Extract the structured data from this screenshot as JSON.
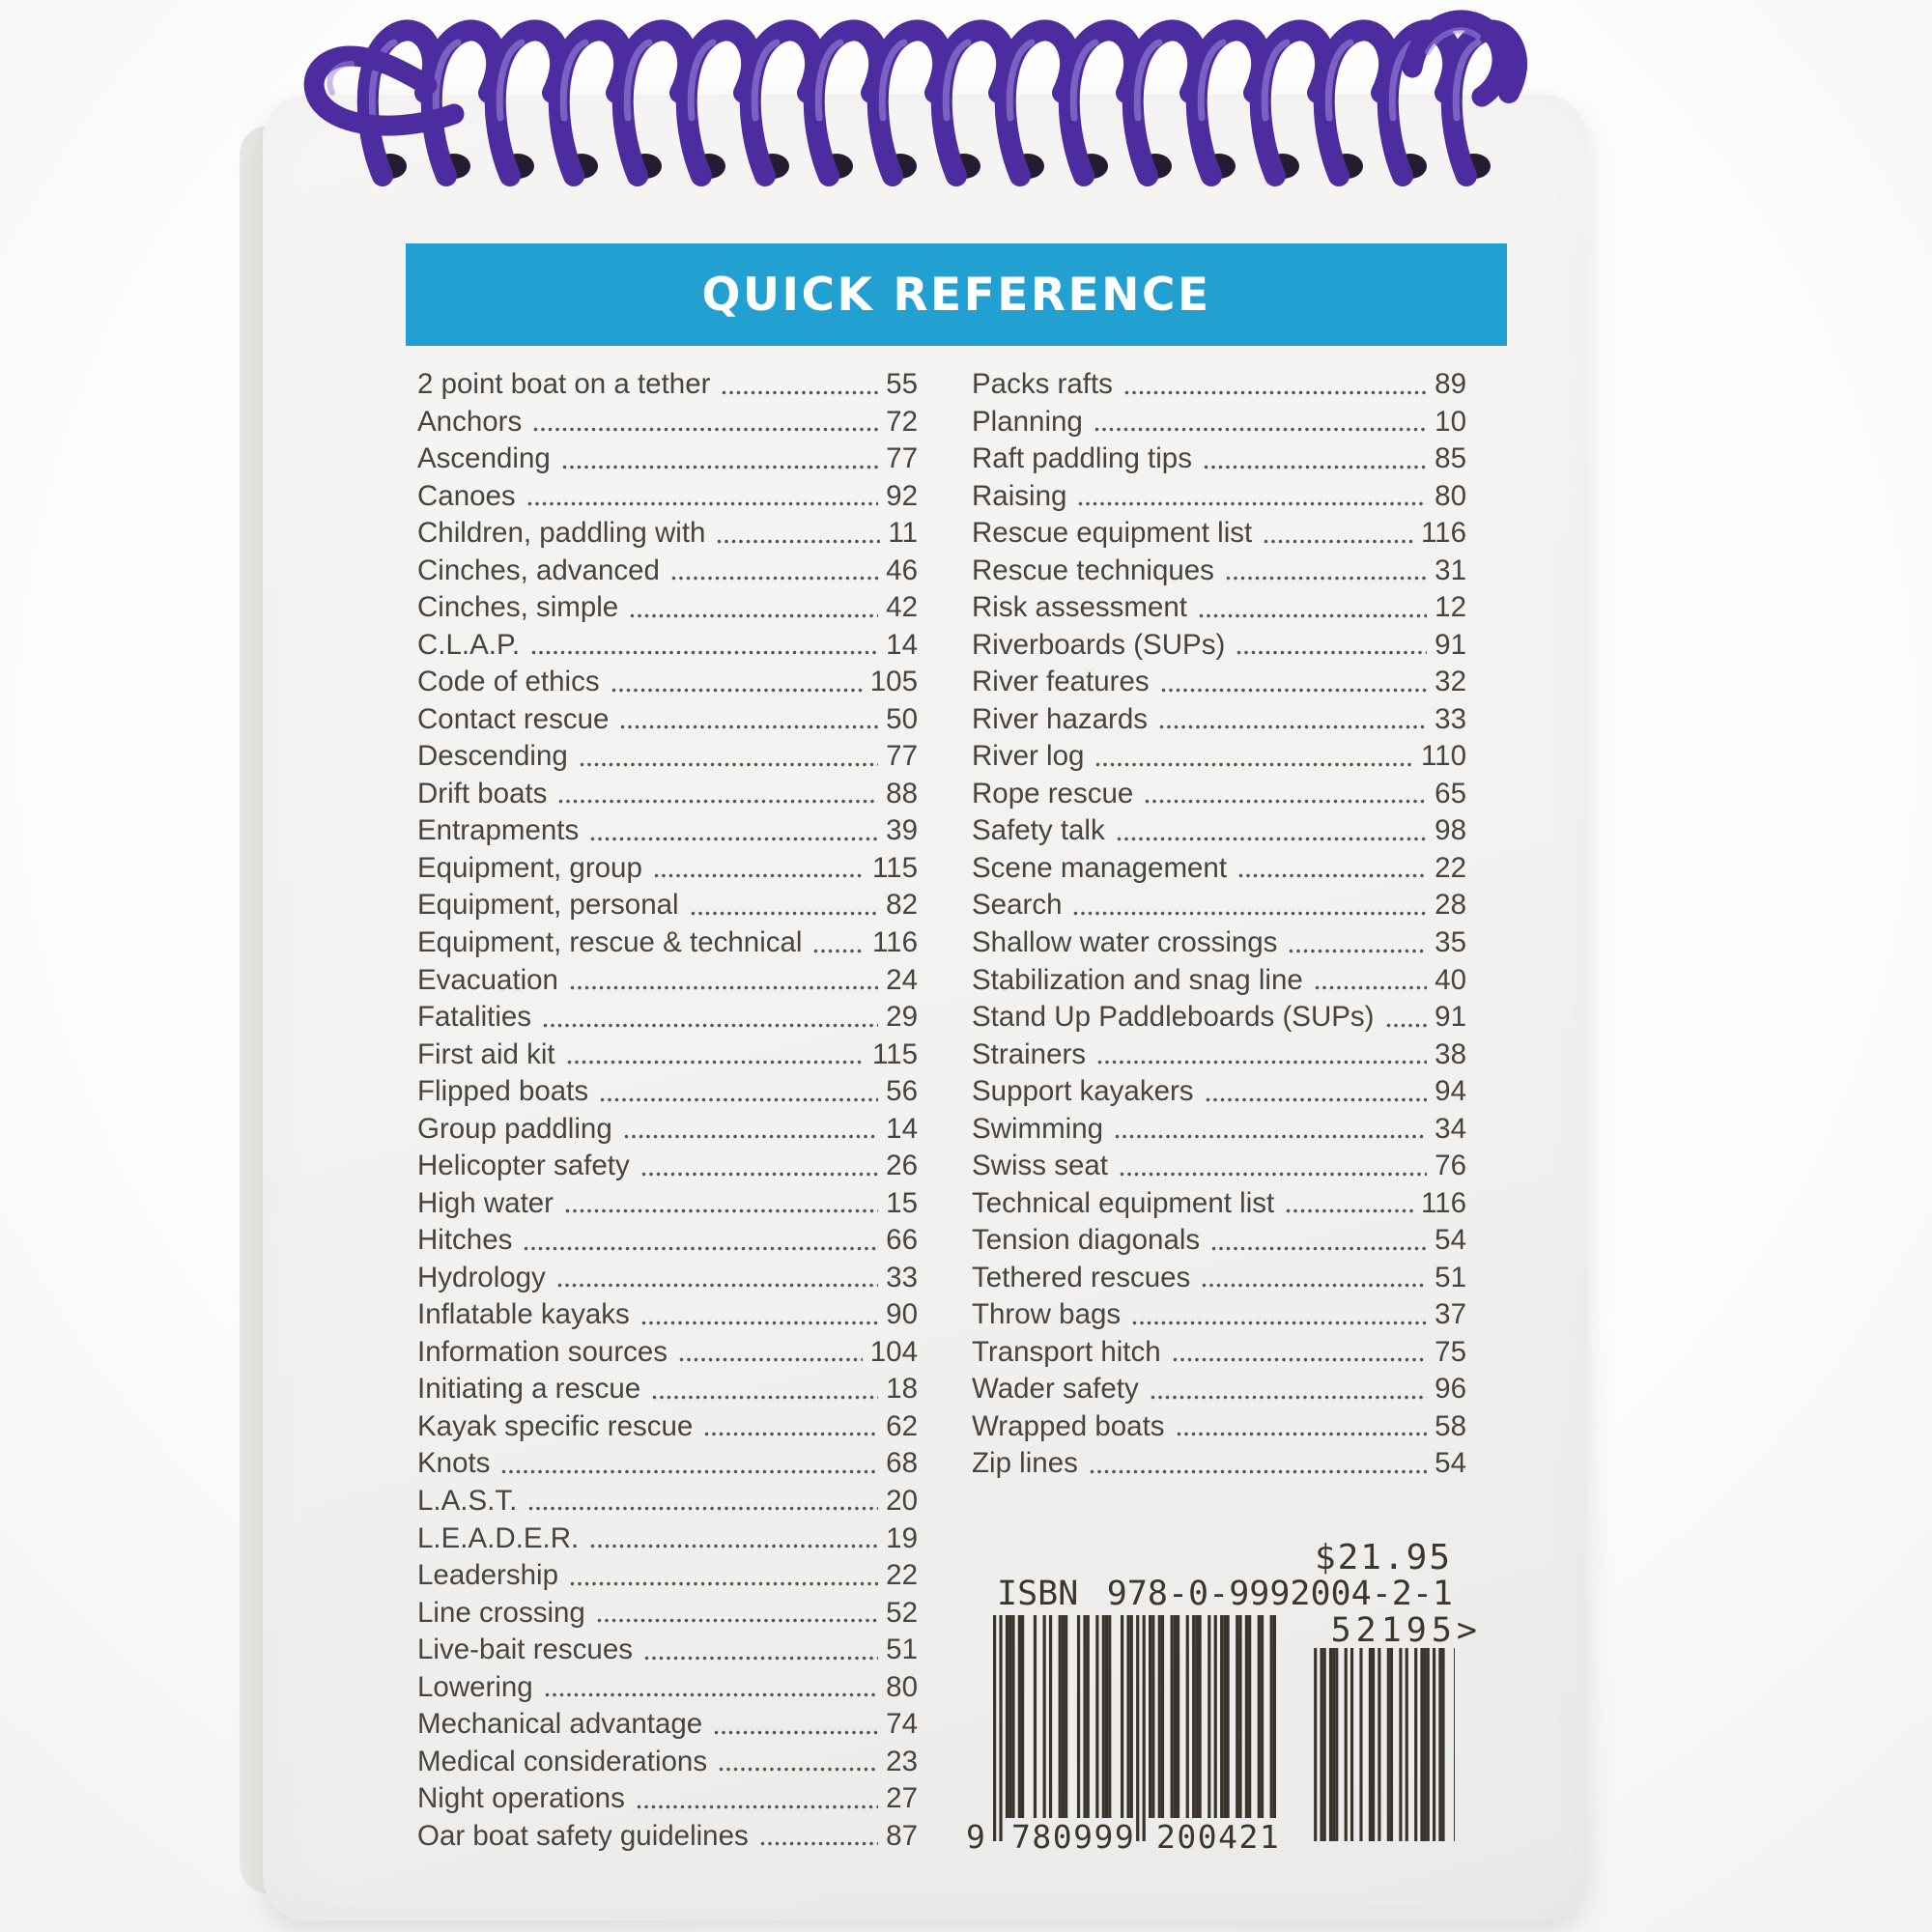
{
  "header": {
    "title": "QUICK REFERENCE"
  },
  "colors": {
    "header_bar": "#23A0D2",
    "coil": "#4C2C9E",
    "coil_highlight": "#9B86DA",
    "hole": "#261C31",
    "text": "#4A433D",
    "barcode_ink": "#3A332C"
  },
  "index": {
    "left_column": [
      {
        "label": "2 point boat on a tether",
        "page": "55"
      },
      {
        "label": "Anchors",
        "page": "72"
      },
      {
        "label": "Ascending",
        "page": "77"
      },
      {
        "label": "Canoes",
        "page": "92"
      },
      {
        "label": "Children, paddling with",
        "page": "11"
      },
      {
        "label": "Cinches, advanced",
        "page": "46"
      },
      {
        "label": "Cinches, simple",
        "page": "42"
      },
      {
        "label": "C.L.A.P.",
        "page": "14"
      },
      {
        "label": "Code of ethics",
        "page": "105"
      },
      {
        "label": "Contact rescue",
        "page": "50"
      },
      {
        "label": "Descending",
        "page": "77"
      },
      {
        "label": "Drift boats",
        "page": "88"
      },
      {
        "label": "Entrapments",
        "page": "39"
      },
      {
        "label": "Equipment, group",
        "page": "115"
      },
      {
        "label": "Equipment, personal",
        "page": "82"
      },
      {
        "label": "Equipment, rescue & technical",
        "page": "116"
      },
      {
        "label": "Evacuation",
        "page": "24"
      },
      {
        "label": "Fatalities",
        "page": "29"
      },
      {
        "label": "First aid kit",
        "page": "115"
      },
      {
        "label": "Flipped boats",
        "page": "56"
      },
      {
        "label": "Group paddling",
        "page": "14"
      },
      {
        "label": "Helicopter safety",
        "page": "26"
      },
      {
        "label": "High water",
        "page": "15"
      },
      {
        "label": "Hitches",
        "page": "66"
      },
      {
        "label": "Hydrology",
        "page": "33"
      },
      {
        "label": "Inflatable kayaks",
        "page": "90"
      },
      {
        "label": "Information sources",
        "page": "104"
      },
      {
        "label": "Initiating a rescue",
        "page": "18"
      },
      {
        "label": "Kayak specific rescue",
        "page": "62"
      },
      {
        "label": "Knots",
        "page": "68"
      },
      {
        "label": "L.A.S.T.",
        "page": "20"
      },
      {
        "label": "L.E.A.D.E.R.",
        "page": "19"
      },
      {
        "label": "Leadership",
        "page": "22"
      },
      {
        "label": "Line crossing",
        "page": "52"
      },
      {
        "label": "Live-bait rescues",
        "page": "51"
      },
      {
        "label": "Lowering",
        "page": "80"
      },
      {
        "label": "Mechanical advantage",
        "page": "74"
      },
      {
        "label": "Medical considerations",
        "page": "23"
      },
      {
        "label": "Night operations",
        "page": "27"
      },
      {
        "label": "Oar boat safety guidelines",
        "page": "87"
      }
    ],
    "right_column": [
      {
        "label": "Packs rafts",
        "page": "89"
      },
      {
        "label": "Planning",
        "page": "10"
      },
      {
        "label": "Raft paddling tips",
        "page": "85"
      },
      {
        "label": "Raising",
        "page": "80"
      },
      {
        "label": "Rescue equipment list",
        "page": "116"
      },
      {
        "label": "Rescue techniques",
        "page": "31"
      },
      {
        "label": "Risk assessment",
        "page": "12"
      },
      {
        "label": "Riverboards (SUPs)",
        "page": "91"
      },
      {
        "label": "River features",
        "page": "32"
      },
      {
        "label": "River hazards",
        "page": "33"
      },
      {
        "label": "River log",
        "page": "110"
      },
      {
        "label": "Rope rescue",
        "page": "65"
      },
      {
        "label": "Safety talk",
        "page": "98"
      },
      {
        "label": "Scene management",
        "page": "22"
      },
      {
        "label": "Search",
        "page": "28"
      },
      {
        "label": "Shallow water crossings",
        "page": "35"
      },
      {
        "label": "Stabilization and snag line",
        "page": "40"
      },
      {
        "label": "Stand Up Paddleboards (SUPs)",
        "page": "91"
      },
      {
        "label": "Strainers",
        "page": "38"
      },
      {
        "label": "Support kayakers",
        "page": "94"
      },
      {
        "label": "Swimming",
        "page": "34"
      },
      {
        "label": "Swiss seat",
        "page": "76"
      },
      {
        "label": "Technical equipment list",
        "page": "116"
      },
      {
        "label": "Tension diagonals",
        "page": "54"
      },
      {
        "label": "Tethered rescues",
        "page": "51"
      },
      {
        "label": "Throw bags",
        "page": "37"
      },
      {
        "label": "Transport hitch",
        "page": "75"
      },
      {
        "label": "Wader safety",
        "page": "96"
      },
      {
        "label": "Wrapped boats",
        "page": "58"
      },
      {
        "label": "Zip lines",
        "page": "54"
      }
    ]
  },
  "pricing": {
    "price": "$21.95",
    "isbn_label": "ISBN",
    "isbn": "978-0-9992004-2-1",
    "addon_code": "52195>",
    "barcode_ean13": "9780999200421",
    "barcode_addon": "52195",
    "barcode_display": [
      "9",
      "780999",
      "200421"
    ]
  }
}
